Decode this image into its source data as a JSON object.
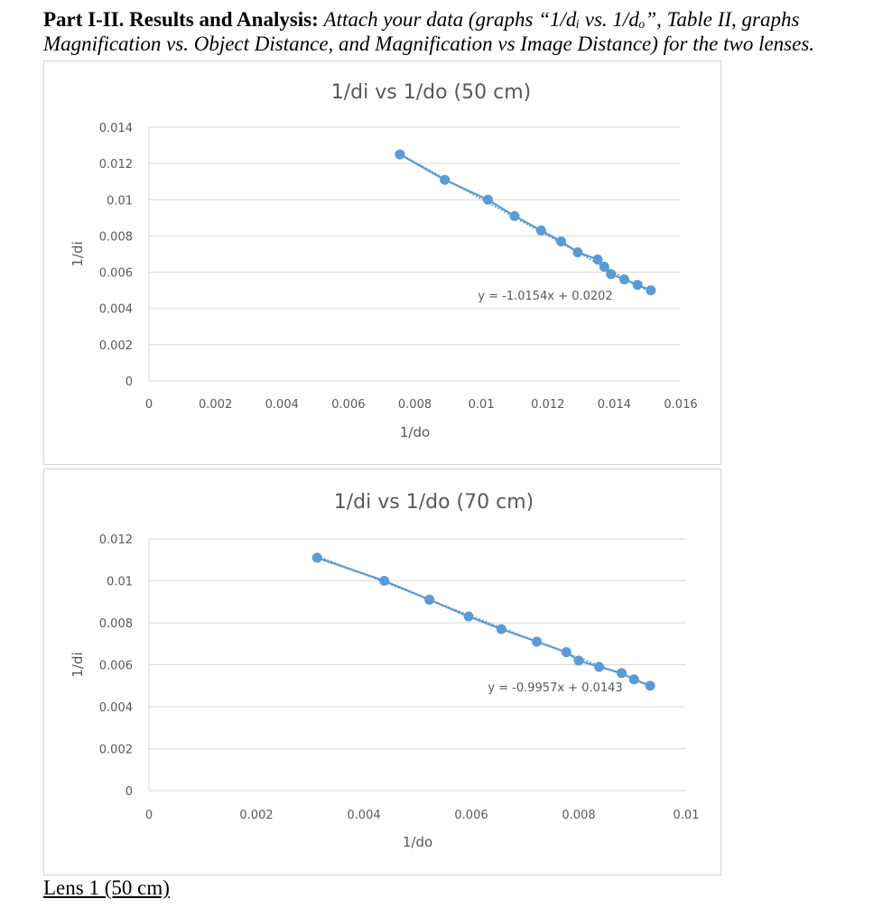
{
  "header": {
    "bold_text": "Part I-II. Results and Analysis:",
    "italic_line1": "Attach your data (graphs “1/dᵢ vs. 1/dₒ”, Table II, graphs",
    "italic_line2": "Magnification vs. Object Distance, and Magnification vs Image Distance) for the two lenses."
  },
  "footer": {
    "text": "Lens 1 (50 cm)"
  },
  "colors": {
    "series": "#5b9bd5",
    "grid": "#d9d9d9",
    "text": "#595959"
  },
  "chart_data": [
    {
      "type": "scatter",
      "title": "1/di vs 1/do (50 cm)",
      "xlabel": "1/do",
      "ylabel": "1/di",
      "xlim": [
        0,
        0.016
      ],
      "ylim": [
        0,
        0.014
      ],
      "x_ticks": [
        "0",
        "0.002",
        "0.004",
        "0.006",
        "0.008",
        "0.01",
        "0.012",
        "0.014",
        "0.016"
      ],
      "y_ticks": [
        "0",
        "0.002",
        "0.004",
        "0.006",
        "0.008",
        "0.01",
        "0.012",
        "0.014"
      ],
      "grid": true,
      "trendline": {
        "slope": -1.0154,
        "intercept": 0.0202,
        "label": "y = -1.0154x + 0.0202"
      },
      "points": [
        {
          "x": 0.00755,
          "y": 0.0125
        },
        {
          "x": 0.0089,
          "y": 0.0111
        },
        {
          "x": 0.0102,
          "y": 0.01
        },
        {
          "x": 0.011,
          "y": 0.0091
        },
        {
          "x": 0.0118,
          "y": 0.0083
        },
        {
          "x": 0.0124,
          "y": 0.0077
        },
        {
          "x": 0.0129,
          "y": 0.0071
        },
        {
          "x": 0.0135,
          "y": 0.0067
        },
        {
          "x": 0.0137,
          "y": 0.0063
        },
        {
          "x": 0.0139,
          "y": 0.0059
        },
        {
          "x": 0.0143,
          "y": 0.0056
        },
        {
          "x": 0.0147,
          "y": 0.0053
        },
        {
          "x": 0.0151,
          "y": 0.005
        }
      ]
    },
    {
      "type": "scatter",
      "title": "1/di vs 1/do (70 cm)",
      "xlabel": "1/do",
      "ylabel": "1/di",
      "xlim": [
        0,
        0.01
      ],
      "ylim": [
        0,
        0.012
      ],
      "x_ticks": [
        "0",
        "0.002",
        "0.004",
        "0.006",
        "0.008",
        "0.01"
      ],
      "y_ticks": [
        "0",
        "0.002",
        "0.004",
        "0.006",
        "0.008",
        "0.01",
        "0.012"
      ],
      "grid": true,
      "trendline": {
        "slope": -0.9957,
        "intercept": 0.0143,
        "label": "y = -0.9957x + 0.0143"
      },
      "points": [
        {
          "x": 0.00313,
          "y": 0.0111
        },
        {
          "x": 0.00438,
          "y": 0.01
        },
        {
          "x": 0.00522,
          "y": 0.0091
        },
        {
          "x": 0.00595,
          "y": 0.0083
        },
        {
          "x": 0.00656,
          "y": 0.0077
        },
        {
          "x": 0.00722,
          "y": 0.0071
        },
        {
          "x": 0.00777,
          "y": 0.0066
        },
        {
          "x": 0.008,
          "y": 0.0062
        },
        {
          "x": 0.00838,
          "y": 0.0059
        },
        {
          "x": 0.0088,
          "y": 0.0056
        },
        {
          "x": 0.00903,
          "y": 0.0053
        },
        {
          "x": 0.00933,
          "y": 0.005
        }
      ]
    }
  ]
}
